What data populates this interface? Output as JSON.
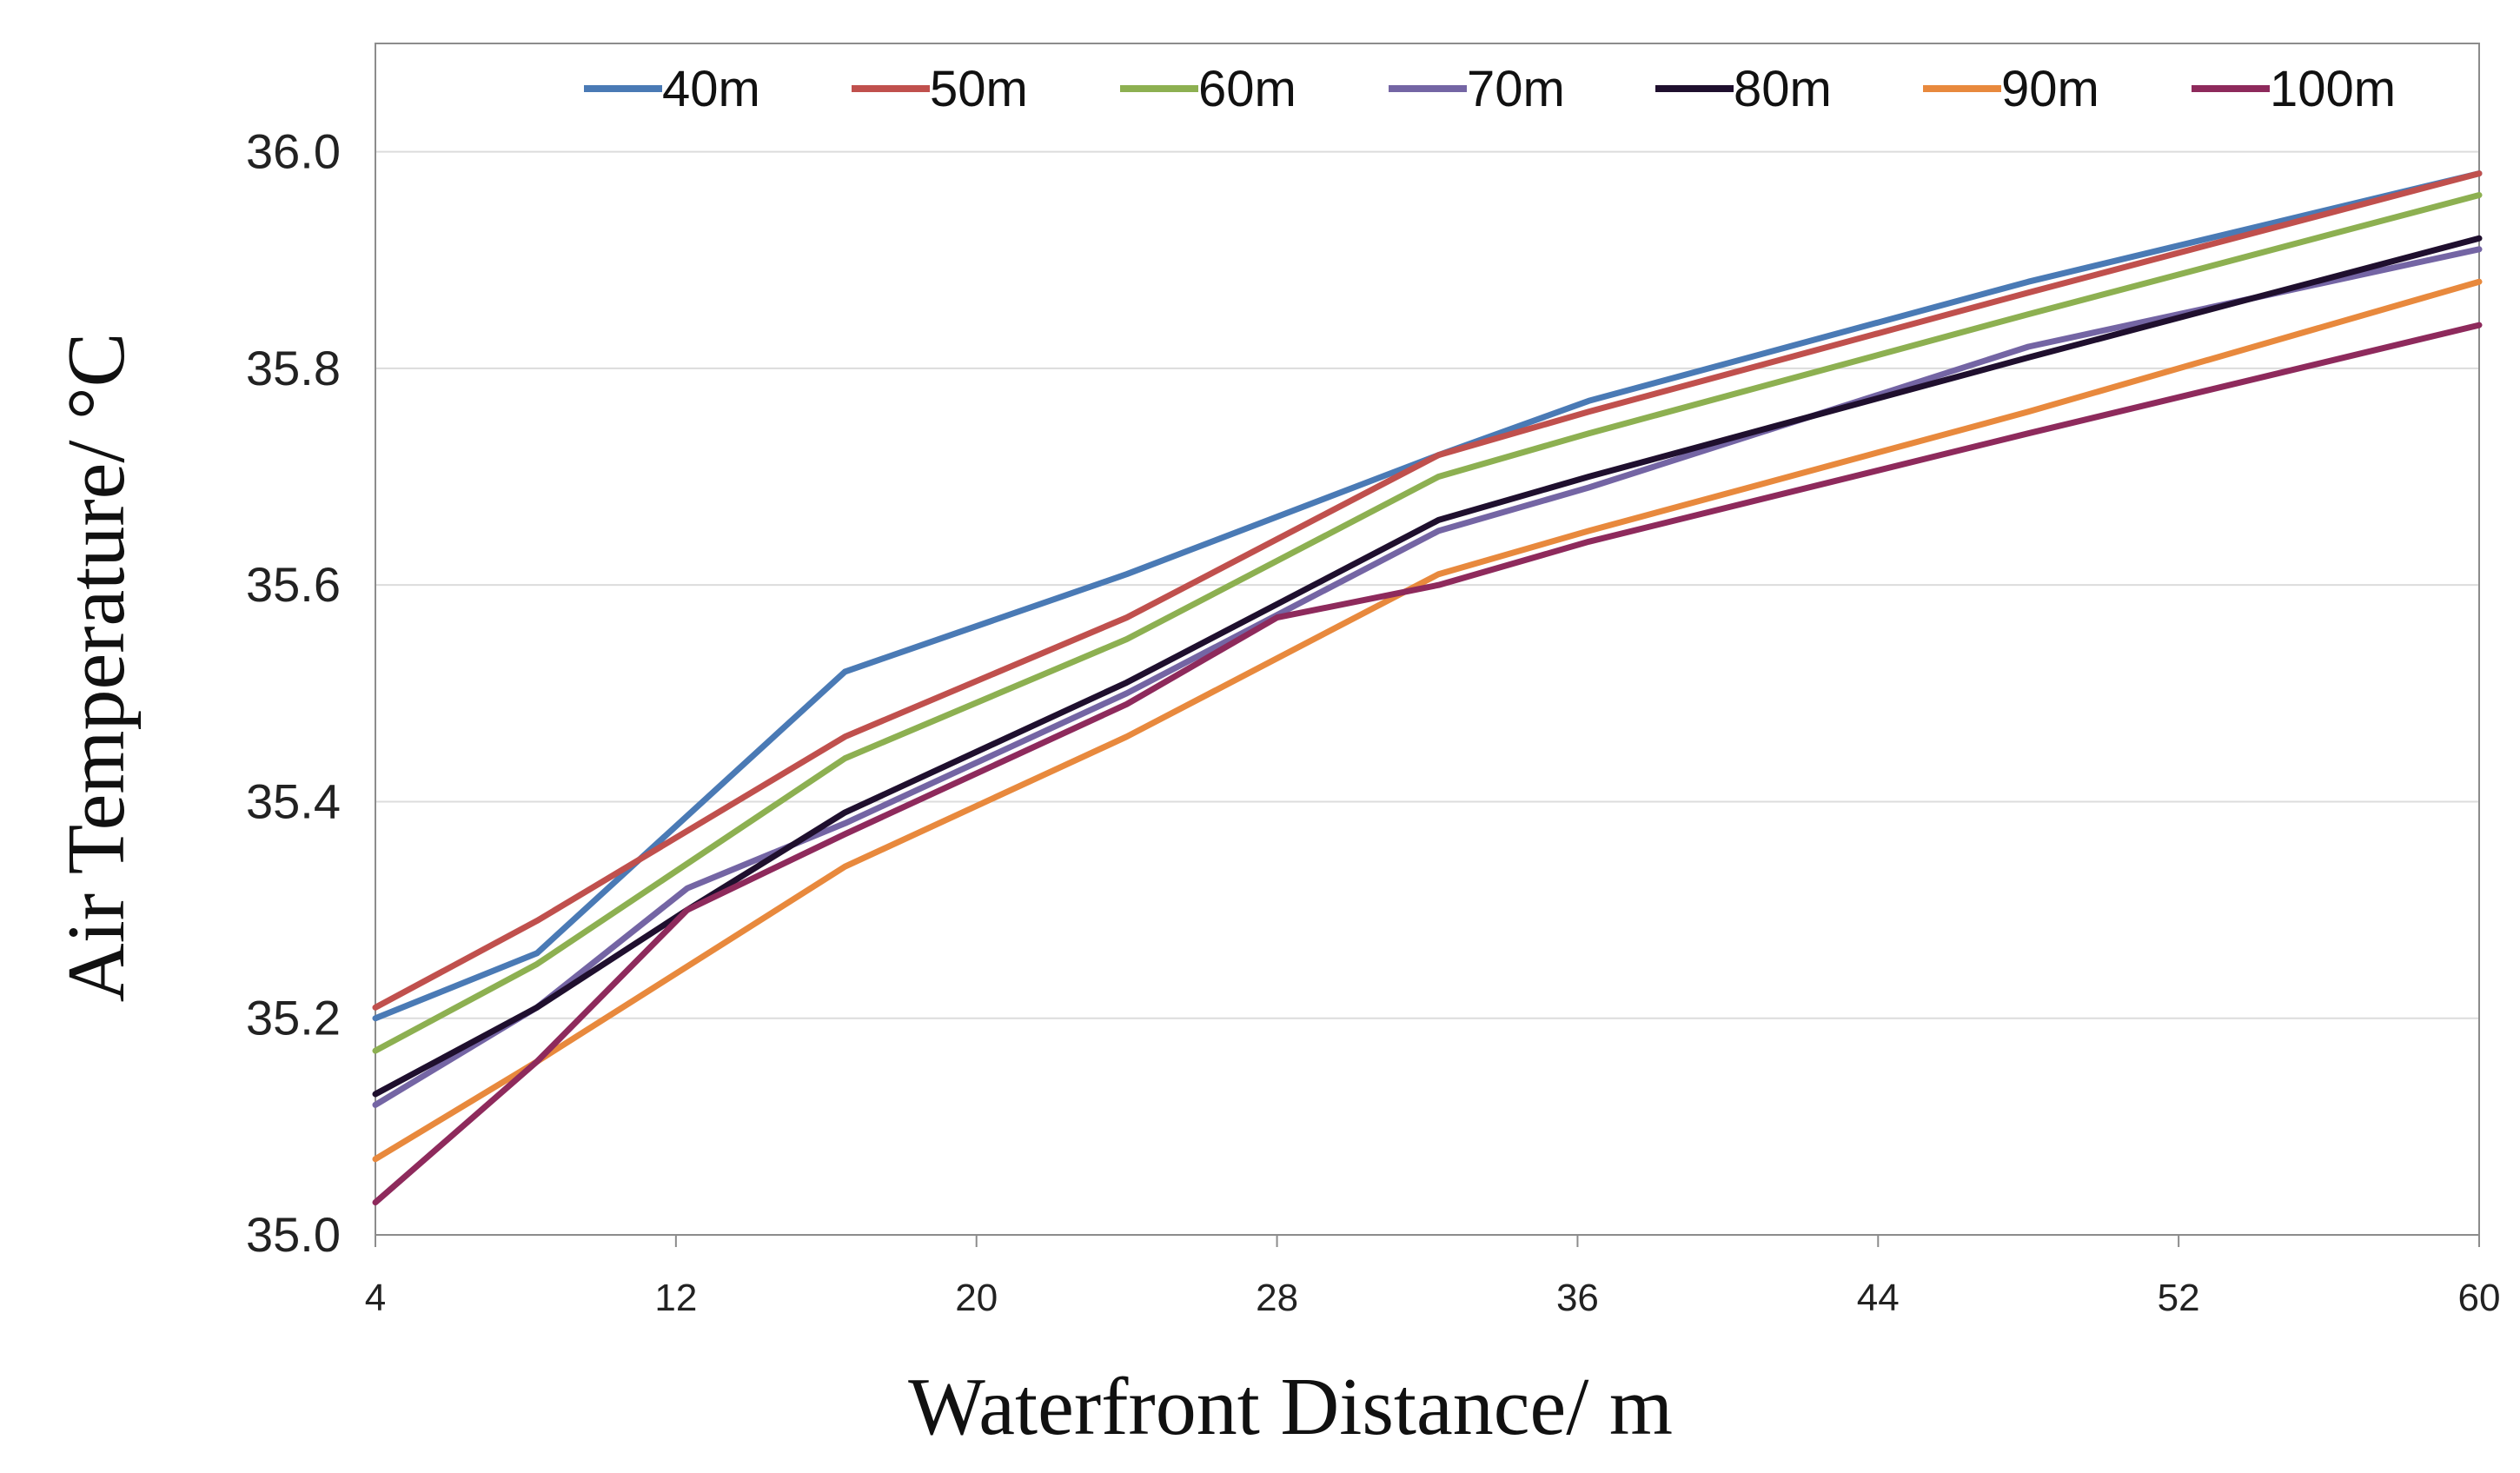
{
  "chart_data": {
    "type": "line",
    "title": "",
    "xlabel": "Waterfront Distance/ m",
    "ylabel": "Air Temperature/ °C",
    "xlim": [
      4,
      60
    ],
    "ylim": [
      35.0,
      36.1
    ],
    "x_ticks": [
      4,
      12,
      20,
      28,
      36,
      44,
      52,
      60
    ],
    "x_tick_labels": [
      "4",
      "12",
      "20",
      "28",
      "36",
      "44",
      "52",
      "60"
    ],
    "y_ticks": [
      35.0,
      35.2,
      35.4,
      35.6,
      35.8,
      36.0
    ],
    "y_tick_labels": [
      "35.0",
      "35.2",
      "35.4",
      "35.6",
      "35.8",
      "36.0"
    ],
    "grid": "horizontal",
    "legend_position": "top",
    "series": [
      {
        "name": "40m",
        "color": "#4a7ab5",
        "points": [
          [
            4,
            35.2
          ],
          [
            8.3,
            35.26
          ],
          [
            16.5,
            35.52
          ],
          [
            24,
            35.61
          ],
          [
            32.3,
            35.72
          ],
          [
            36.3,
            35.77
          ],
          [
            48,
            35.88
          ],
          [
            60,
            35.98
          ]
        ]
      },
      {
        "name": "50m",
        "color": "#c0504d",
        "points": [
          [
            4,
            35.21
          ],
          [
            8.3,
            35.29
          ],
          [
            16.5,
            35.46
          ],
          [
            24,
            35.57
          ],
          [
            32.3,
            35.72
          ],
          [
            36.3,
            35.76
          ],
          [
            48,
            35.87
          ],
          [
            60,
            35.98
          ]
        ]
      },
      {
        "name": "60m",
        "color": "#8db051",
        "points": [
          [
            4,
            35.17
          ],
          [
            8.3,
            35.25
          ],
          [
            16.5,
            35.44
          ],
          [
            24,
            35.55
          ],
          [
            32.3,
            35.7
          ],
          [
            36.3,
            35.74
          ],
          [
            48,
            35.85
          ],
          [
            60,
            35.96
          ]
        ]
      },
      {
        "name": "70m",
        "color": "#7465a4",
        "points": [
          [
            4,
            35.12
          ],
          [
            8.3,
            35.21
          ],
          [
            12.3,
            35.32
          ],
          [
            16.5,
            35.38
          ],
          [
            24,
            35.5
          ],
          [
            32.3,
            35.65
          ],
          [
            36.3,
            35.69
          ],
          [
            48,
            35.82
          ],
          [
            60,
            35.91
          ]
        ]
      },
      {
        "name": "80m",
        "color": "#1f0f2e",
        "points": [
          [
            4,
            35.13
          ],
          [
            8.3,
            35.21
          ],
          [
            12.3,
            35.3
          ],
          [
            16.5,
            35.39
          ],
          [
            24,
            35.51
          ],
          [
            32.3,
            35.66
          ],
          [
            36.3,
            35.7
          ],
          [
            48,
            35.81
          ],
          [
            60,
            35.92
          ]
        ]
      },
      {
        "name": "90m",
        "color": "#e8893d",
        "points": [
          [
            4,
            35.07
          ],
          [
            8.3,
            35.16
          ],
          [
            16.5,
            35.34
          ],
          [
            24,
            35.46
          ],
          [
            32.3,
            35.61
          ],
          [
            36.3,
            35.65
          ],
          [
            48,
            35.76
          ],
          [
            60,
            35.88
          ]
        ]
      },
      {
        "name": "100m",
        "color": "#8e2a5c",
        "points": [
          [
            4,
            35.03
          ],
          [
            8.3,
            35.16
          ],
          [
            12.3,
            35.3
          ],
          [
            16.5,
            35.37
          ],
          [
            24,
            35.49
          ],
          [
            28,
            35.57
          ],
          [
            32.3,
            35.6
          ],
          [
            36.3,
            35.64
          ],
          [
            48,
            35.74
          ],
          [
            60,
            35.84
          ]
        ]
      }
    ]
  }
}
